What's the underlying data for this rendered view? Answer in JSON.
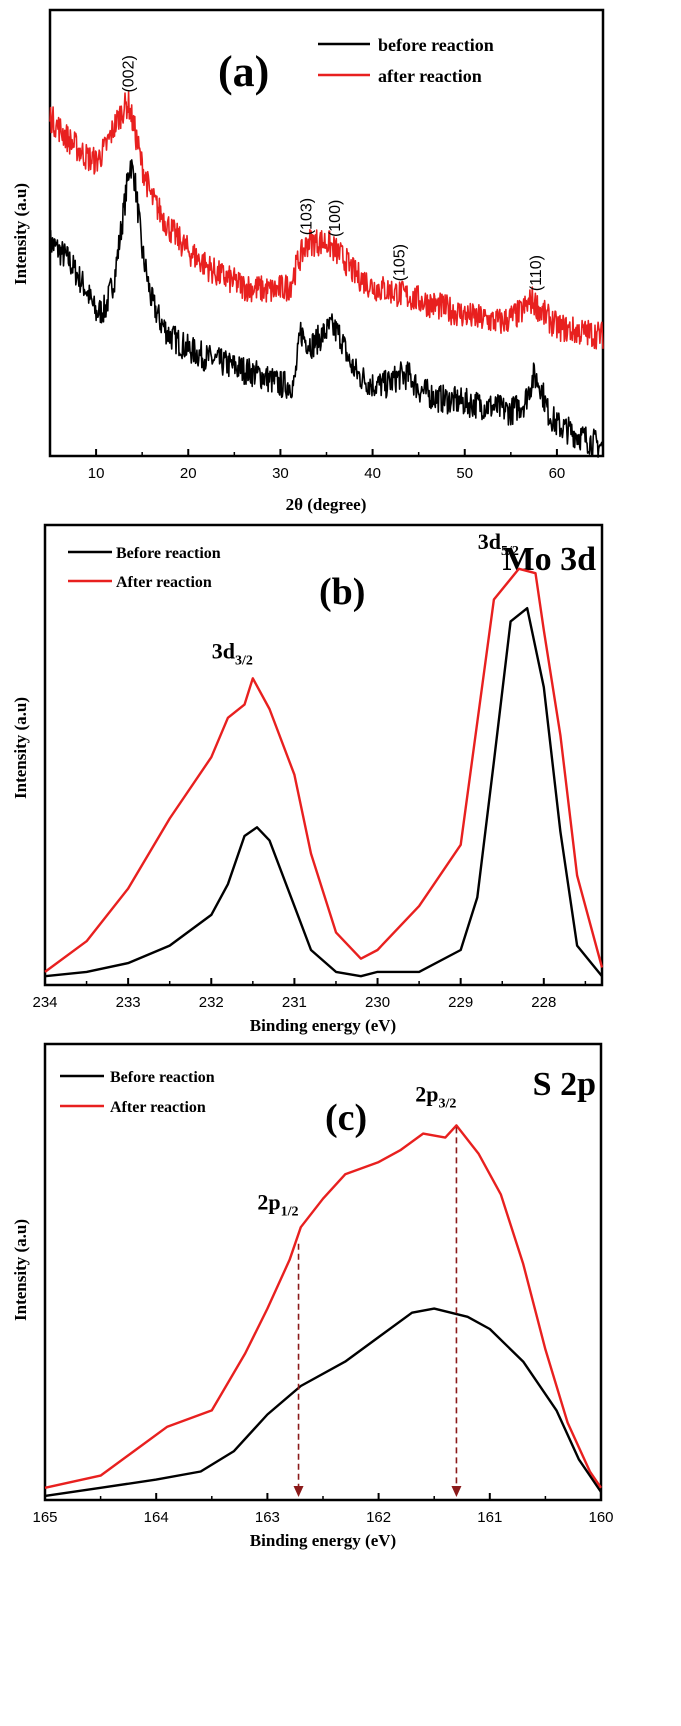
{
  "colors": {
    "before": "#000000",
    "after": "#e8201f",
    "arrow": "#8b1a1a"
  },
  "chart_data": [
    {
      "type": "line",
      "panel_label": "(a)",
      "xlabel": "2θ (degree)",
      "ylabel": "Intensity (a.u)",
      "xlim": [
        5,
        65
      ],
      "xticks": [
        10,
        20,
        30,
        40,
        50,
        60
      ],
      "y_ticks_shown": false,
      "legend_position": "top-right",
      "series": [
        {
          "name": "before reaction",
          "color": "#000000",
          "x": [
            5,
            7,
            9,
            10,
            11,
            12,
            13,
            13.7,
            14.2,
            15,
            16,
            17,
            18,
            20,
            22,
            25,
            28,
            30,
            31.5,
            32.2,
            32.7,
            33.5,
            34.5,
            35.5,
            36.5,
            37.5,
            38.5,
            40,
            41.5,
            43,
            44,
            45,
            47,
            50,
            53,
            55,
            56.5,
            57.5,
            58.2,
            59,
            60,
            62,
            64,
            65
          ],
          "y": [
            48,
            44,
            37,
            32,
            33,
            40,
            55,
            66,
            62,
            46,
            35,
            30,
            27,
            24,
            22,
            20,
            18,
            16,
            16,
            28,
            26,
            25,
            27,
            29,
            27,
            21,
            18,
            16,
            16,
            18,
            18,
            15,
            13,
            12,
            11,
            10,
            12,
            18,
            16,
            10,
            7,
            5,
            3,
            2
          ]
        },
        {
          "name": "after reaction",
          "color": "#e8201f",
          "x": [
            5,
            7,
            9,
            10,
            11,
            12,
            13,
            13.5,
            14.2,
            15,
            16,
            18,
            20,
            23,
            26,
            29,
            31,
            32,
            33,
            34,
            35,
            36,
            37,
            38,
            40,
            42,
            45,
            48,
            51,
            54,
            56,
            57.3,
            58.5,
            60,
            62,
            65
          ],
          "y": [
            76,
            71,
            67,
            66,
            69,
            74,
            78,
            79,
            73,
            65,
            58,
            51,
            46,
            41,
            38,
            37,
            38,
            44,
            48,
            48,
            48,
            46,
            44,
            41,
            38,
            37,
            35,
            33,
            31,
            30,
            32,
            35,
            32,
            29,
            28,
            27
          ]
        }
      ],
      "annotations": [
        {
          "text": "(002)",
          "x": 13.4
        },
        {
          "text": "(103)",
          "x": 32.7
        },
        {
          "text": "(100)",
          "x": 35.8
        },
        {
          "text": "(105)",
          "x": 42.8
        },
        {
          "text": "(110)",
          "x": 57.6
        }
      ]
    },
    {
      "type": "line",
      "panel_label": "(b)",
      "title": "Mo 3d",
      "xlabel": "Binding energy (eV)",
      "ylabel": "Intensity (a.u)",
      "xlim": [
        234,
        227.3
      ],
      "xticks": [
        234,
        233,
        232,
        231,
        230,
        229,
        228
      ],
      "y_ticks_shown": false,
      "legend_position": "top-left",
      "series": [
        {
          "name": "Before reaction",
          "color": "#000000",
          "x": [
            234,
            233.5,
            233,
            232.5,
            232,
            231.8,
            231.6,
            231.45,
            231.3,
            231,
            230.8,
            230.5,
            230.2,
            230,
            229.5,
            229,
            228.8,
            228.6,
            228.4,
            228.2,
            228.0,
            227.8,
            227.6,
            227.3
          ],
          "y": [
            2,
            3,
            5,
            9,
            16,
            23,
            34,
            36,
            33,
            18,
            8,
            3,
            2,
            3,
            3,
            8,
            20,
            51,
            83,
            86,
            68,
            35,
            9,
            2
          ]
        },
        {
          "name": "After reaction",
          "color": "#e8201f",
          "x": [
            234,
            233.5,
            233,
            232.5,
            232,
            231.8,
            231.6,
            231.5,
            231.3,
            231,
            230.8,
            230.5,
            230.2,
            230,
            229.5,
            229,
            228.8,
            228.6,
            228.3,
            228.1,
            228.0,
            227.8,
            227.6,
            227.3
          ],
          "y": [
            3,
            10,
            22,
            38,
            52,
            61,
            64,
            70,
            63,
            48,
            30,
            12,
            6,
            8,
            18,
            32,
            60,
            88,
            95,
            94,
            81,
            57,
            25,
            4
          ]
        }
      ],
      "annotations": [
        {
          "text": "3d",
          "sub": "3/2",
          "x": 231.5
        },
        {
          "text": "3d",
          "sub": "5/2",
          "x": 228.3
        }
      ]
    },
    {
      "type": "line",
      "panel_label": "(c)",
      "title": "S 2p",
      "xlabel": "Binding energy (eV)",
      "ylabel": "Intensity (a.u)",
      "xlim": [
        165,
        160
      ],
      "xticks": [
        165,
        164,
        163,
        162,
        161,
        160
      ],
      "y_ticks_shown": false,
      "legend_position": "top-left",
      "series": [
        {
          "name": "Before reaction",
          "color": "#000000",
          "x": [
            165,
            164.5,
            164,
            163.6,
            163.3,
            163,
            162.7,
            162.3,
            162,
            161.7,
            161.5,
            161.2,
            161,
            160.7,
            160.4,
            160.2,
            160
          ],
          "y": [
            1,
            3,
            5,
            7,
            12,
            21,
            28,
            34,
            40,
            46,
            47,
            45,
            42,
            34,
            22,
            10,
            2
          ]
        },
        {
          "name": "After reaction",
          "color": "#e8201f",
          "x": [
            165,
            164.5,
            164.2,
            163.9,
            163.5,
            163.2,
            163,
            162.8,
            162.7,
            162.5,
            162.3,
            162,
            161.8,
            161.6,
            161.4,
            161.3,
            161.1,
            160.9,
            160.7,
            160.5,
            160.3,
            160.1,
            160
          ],
          "y": [
            3,
            6,
            12,
            18,
            22,
            36,
            47,
            59,
            67,
            74,
            80,
            83,
            86,
            90,
            89,
            92,
            85,
            75,
            58,
            37,
            19,
            7,
            3
          ]
        }
      ],
      "annotations": [
        {
          "text": "2p",
          "sub": "1/2",
          "x": 162.72
        },
        {
          "text": "2p",
          "sub": "3/2",
          "x": 161.3
        }
      ]
    }
  ]
}
